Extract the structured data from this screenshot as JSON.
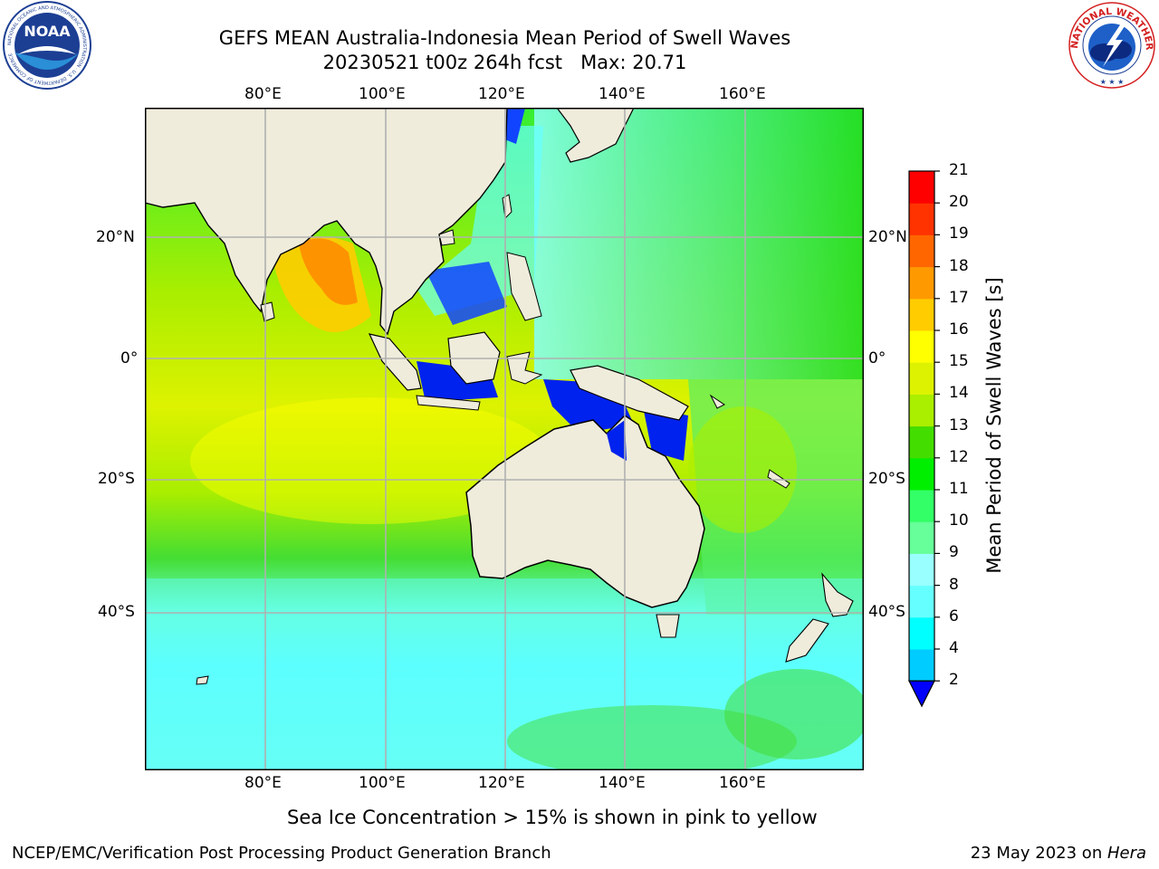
{
  "title": {
    "line1": "GEFS MEAN Australia-Indonesia Mean Period of Swell Waves",
    "line2": "20230521 t00z 264h fcst   Max: 20.71"
  },
  "logos": {
    "left": {
      "text": "NOAA",
      "ring_text": "NATIONAL OCEANIC AND ATMOSPHERIC ADMINISTRATION · U.S. DEPARTMENT OF COMMERCE",
      "icon": "noaa-logo-icon"
    },
    "right": {
      "ring_text": "NATIONAL WEATHER SERVICE",
      "icon": "nws-logo-icon"
    }
  },
  "map": {
    "lon_labels": [
      "80°E",
      "100°E",
      "120°E",
      "140°E",
      "160°E"
    ],
    "lat_labels": [
      "20°N",
      "0°",
      "20°S",
      "40°S"
    ],
    "colors": {
      "land": "#efecdc",
      "grid": "#b0b0b0",
      "coast": "#000000"
    }
  },
  "colorbar": {
    "label": "Mean Period of Swell Waves [s]",
    "ticks": [
      "2",
      "4",
      "6",
      "8",
      "9",
      "10",
      "11",
      "12",
      "13",
      "14",
      "15",
      "16",
      "17",
      "18",
      "19",
      "20",
      "21"
    ],
    "colors": [
      "#0066ff",
      "#00ccff",
      "#00ffff",
      "#66ffff",
      "#99ffff",
      "#66ff99",
      "#33ff66",
      "#00ee00",
      "#44dd00",
      "#aaee00",
      "#ddf200",
      "#ffff00",
      "#ffcc00",
      "#ff9900",
      "#ff6600",
      "#ff3300",
      "#ff0000"
    ],
    "extend_color": "#0000ff"
  },
  "note": "Sea Ice Concentration > 15% is shown in pink to yellow",
  "footer": {
    "left": "NCEP/EMC/Verification Post Processing Product Generation Branch",
    "date": "23 May 2023 on ",
    "host": "Hera"
  }
}
